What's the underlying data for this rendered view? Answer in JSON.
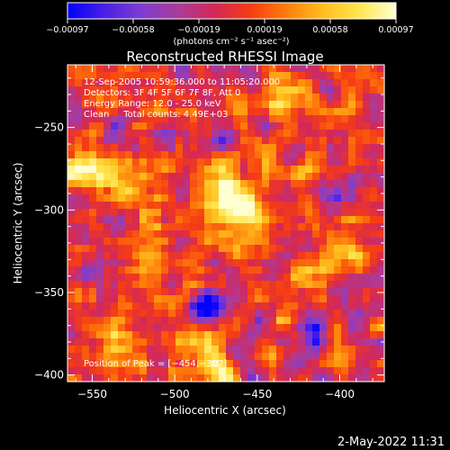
{
  "chart_data": {
    "type": "heatmap",
    "title": "Reconstructed RHESSI Image",
    "xlabel": "Heliocentric X (arcsec)",
    "ylabel": "Heliocentric Y (arcsec)",
    "xlim": [
      -565,
      -373
    ],
    "ylim": [
      -404,
      -212
    ],
    "x_ticks": [
      -550,
      -500,
      -450,
      -400
    ],
    "y_ticks": [
      -250,
      -300,
      -350,
      -400
    ],
    "x_tick_labels": [
      "−550",
      "−500",
      "−450",
      "−400"
    ],
    "y_tick_labels": [
      "−250",
      "−300",
      "−350",
      "−400"
    ],
    "colorbar": {
      "min": -0.00097,
      "max": 0.00097,
      "tick_labels": [
        "−0.00097",
        "−0.00058",
        "−0.00019",
        "0.00019",
        "0.00058",
        "0.00097"
      ],
      "units_label": "(photons cm⁻² s⁻¹ asec⁻²)"
    },
    "annotations": [
      "12-Sep-2005 10:59:36.000 to 11:05:20.000",
      "Detectors: 3F 4F 5F 6F 7F 8F, Att 0",
      "Energy Range: 12.0 - 25.0 keV",
      "Clean     Total counts: 4.49E+03"
    ],
    "peak_label": "Position of Peak = [−454,−302]",
    "peak": [
      -454,
      -302
    ],
    "bright_regions": [
      {
        "x": -454,
        "y": -302,
        "value": 0.00097
      },
      {
        "x": -470,
        "y": -285,
        "value": 0.0008
      },
      {
        "x": -525,
        "y": -285,
        "value": 0.00085
      },
      {
        "x": -555,
        "y": -275,
        "value": 0.0008
      },
      {
        "x": -520,
        "y": -330,
        "value": 0.0006
      },
      {
        "x": -400,
        "y": -330,
        "value": 0.0008
      },
      {
        "x": -480,
        "y": -390,
        "value": 0.0007
      },
      {
        "x": -440,
        "y": -230,
        "value": 0.0007
      },
      {
        "x": -540,
        "y": -380,
        "value": 0.0006
      }
    ],
    "dark_regions": [
      {
        "x": -450,
        "y": -215,
        "value": -0.00058
      },
      {
        "x": -395,
        "y": -350,
        "value": -0.0008
      },
      {
        "x": -480,
        "y": -358,
        "value": -0.0006
      },
      {
        "x": -420,
        "y": -378,
        "value": -0.0005
      },
      {
        "x": -465,
        "y": -258,
        "value": -0.0004
      }
    ]
  },
  "footer": {
    "timestamp": "2-May-2022 11:31"
  },
  "colors": {
    "background": "#000000",
    "foreground": "#ffffff"
  },
  "colormap": [
    "#0000ff",
    "#4b1ee6",
    "#7d3cd2",
    "#aa3c9b",
    "#d2285a",
    "#f53c14",
    "#ff7d0a",
    "#ffbe1e",
    "#ffe650",
    "#ffffd2"
  ]
}
